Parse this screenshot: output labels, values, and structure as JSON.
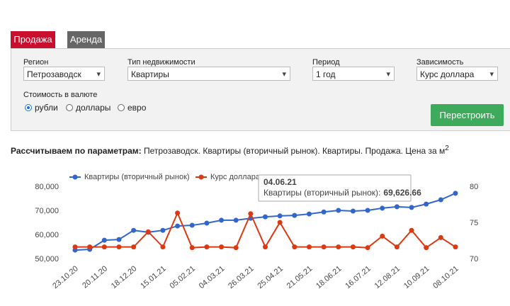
{
  "tabs": [
    "Продажа",
    "Аренда"
  ],
  "filters": [
    {
      "label": "Регион",
      "value": "Петрозаводск"
    },
    {
      "label": "Тип недвижимости",
      "value": "Квартиры"
    },
    {
      "label": "Период",
      "value": "1 год"
    },
    {
      "label": "Зависимость",
      "value": "Курс доллара"
    }
  ],
  "currency": {
    "label": "Стоимость в валюте",
    "options": [
      {
        "label": "рубли",
        "checked": true
      },
      {
        "label": "доллары",
        "checked": false
      },
      {
        "label": "евро",
        "checked": false
      }
    ]
  },
  "button": "Перестроить",
  "caption": {
    "bold": "Рассчитываем по параметрам:",
    "text": "Петрозаводск. Квартиры (вторичный рынок). Квартиры. Продажа. Цена за м",
    "sup": "2"
  },
  "chart_data": {
    "type": "line",
    "categories": [
      "23.10.20",
      null,
      "20.11.20",
      null,
      "18.12.20",
      null,
      "15.01.21",
      null,
      "05.02.21",
      null,
      "04.03.21",
      null,
      "26.03.21",
      null,
      "25.04.21",
      null,
      "21.05.21",
      null,
      "18.06.21",
      null,
      "16.07.21",
      null,
      "12.08.21",
      null,
      "10.09.21",
      null,
      "08.10.21"
    ],
    "series": [
      {
        "name": "Квартиры (вторичный рынок)",
        "color": "#3366cc",
        "values": [
          53800,
          54100,
          57900,
          58200,
          62000,
          61200,
          62000,
          63800,
          64100,
          65000,
          66200,
          66200,
          67000,
          67600,
          68000,
          68200,
          68800,
          69626.66,
          70300,
          70000,
          70300,
          71200,
          71800,
          71500,
          72900,
          74700,
          77400
        ]
      },
      {
        "name": "Курс доллара",
        "color": "#dc3912",
        "axis": "y2",
        "values": [
          71.7,
          71.7,
          71.7,
          71.7,
          71.7,
          73.8,
          71.7,
          76.4,
          71.6,
          71.7,
          71.7,
          71.6,
          76.3,
          71.7,
          75.1,
          71.7,
          71.7,
          71.7,
          71.7,
          71.7,
          71.6,
          73.2,
          71.7,
          74.0,
          71.6,
          73.0,
          71.7
        ]
      }
    ],
    "ylim": [
      50000,
      80000
    ],
    "yticks": [
      {
        "value": 50000,
        "label": "50,000"
      },
      {
        "value": 60000,
        "label": "60,000"
      },
      {
        "value": 70000,
        "label": "70,000"
      },
      {
        "value": 80000,
        "label": "80,000"
      }
    ],
    "y2lim": [
      70,
      80
    ],
    "y2ticks": [
      70,
      75,
      80
    ],
    "legend": "top",
    "tooltip": {
      "title": "04.06.21",
      "text": "Квартиры (вторичный рынок):",
      "value_label": "69,626.66"
    }
  }
}
